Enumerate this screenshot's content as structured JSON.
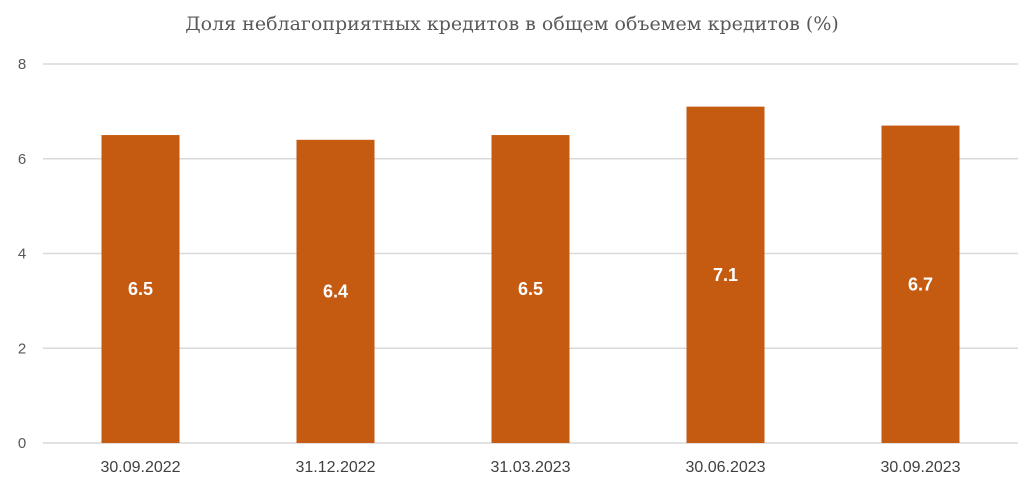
{
  "chart_data": {
    "type": "bar",
    "title": "Доля неблагоприятных кредитов в общем объемем кредитов (%)",
    "categories": [
      "30.09.2022",
      "31.12.2022",
      "31.03.2023",
      "30.06.2023",
      "30.09.2023"
    ],
    "values": [
      6.5,
      6.4,
      6.5,
      7.1,
      6.7
    ],
    "data_labels": [
      "6.5",
      "6.4",
      "6.5",
      "7.1",
      "6.7"
    ],
    "xlabel": "",
    "ylabel": "",
    "ylim": [
      0,
      8
    ],
    "yticks": [
      0,
      2,
      4,
      6,
      8
    ],
    "grid": true,
    "legend": "none",
    "colors": {
      "bar": "#C55A11",
      "grid": "#D9D9D9"
    }
  }
}
